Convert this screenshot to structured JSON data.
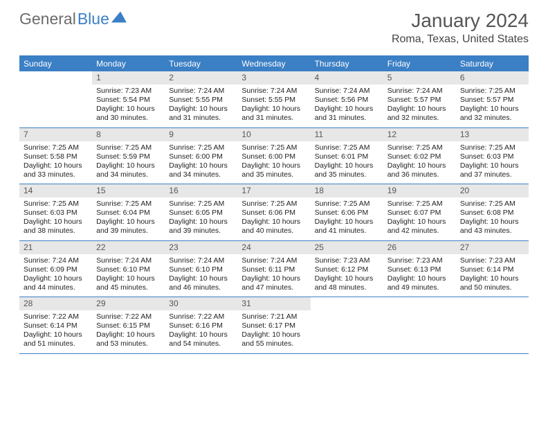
{
  "logo": {
    "text1": "General",
    "text2": "Blue"
  },
  "header": {
    "title": "January 2024",
    "location": "Roma, Texas, United States"
  },
  "colors": {
    "accent": "#3b7fc4",
    "daynum_bg": "#e7e7e7",
    "text": "#222222",
    "title": "#555555"
  },
  "weekdays": [
    "Sunday",
    "Monday",
    "Tuesday",
    "Wednesday",
    "Thursday",
    "Friday",
    "Saturday"
  ],
  "weeks": [
    [
      {
        "num": "",
        "sunrise": "",
        "sunset": "",
        "daylight1": "",
        "daylight2": ""
      },
      {
        "num": "1",
        "sunrise": "Sunrise: 7:23 AM",
        "sunset": "Sunset: 5:54 PM",
        "daylight1": "Daylight: 10 hours",
        "daylight2": "and 30 minutes."
      },
      {
        "num": "2",
        "sunrise": "Sunrise: 7:24 AM",
        "sunset": "Sunset: 5:55 PM",
        "daylight1": "Daylight: 10 hours",
        "daylight2": "and 31 minutes."
      },
      {
        "num": "3",
        "sunrise": "Sunrise: 7:24 AM",
        "sunset": "Sunset: 5:55 PM",
        "daylight1": "Daylight: 10 hours",
        "daylight2": "and 31 minutes."
      },
      {
        "num": "4",
        "sunrise": "Sunrise: 7:24 AM",
        "sunset": "Sunset: 5:56 PM",
        "daylight1": "Daylight: 10 hours",
        "daylight2": "and 31 minutes."
      },
      {
        "num": "5",
        "sunrise": "Sunrise: 7:24 AM",
        "sunset": "Sunset: 5:57 PM",
        "daylight1": "Daylight: 10 hours",
        "daylight2": "and 32 minutes."
      },
      {
        "num": "6",
        "sunrise": "Sunrise: 7:25 AM",
        "sunset": "Sunset: 5:57 PM",
        "daylight1": "Daylight: 10 hours",
        "daylight2": "and 32 minutes."
      }
    ],
    [
      {
        "num": "7",
        "sunrise": "Sunrise: 7:25 AM",
        "sunset": "Sunset: 5:58 PM",
        "daylight1": "Daylight: 10 hours",
        "daylight2": "and 33 minutes."
      },
      {
        "num": "8",
        "sunrise": "Sunrise: 7:25 AM",
        "sunset": "Sunset: 5:59 PM",
        "daylight1": "Daylight: 10 hours",
        "daylight2": "and 34 minutes."
      },
      {
        "num": "9",
        "sunrise": "Sunrise: 7:25 AM",
        "sunset": "Sunset: 6:00 PM",
        "daylight1": "Daylight: 10 hours",
        "daylight2": "and 34 minutes."
      },
      {
        "num": "10",
        "sunrise": "Sunrise: 7:25 AM",
        "sunset": "Sunset: 6:00 PM",
        "daylight1": "Daylight: 10 hours",
        "daylight2": "and 35 minutes."
      },
      {
        "num": "11",
        "sunrise": "Sunrise: 7:25 AM",
        "sunset": "Sunset: 6:01 PM",
        "daylight1": "Daylight: 10 hours",
        "daylight2": "and 35 minutes."
      },
      {
        "num": "12",
        "sunrise": "Sunrise: 7:25 AM",
        "sunset": "Sunset: 6:02 PM",
        "daylight1": "Daylight: 10 hours",
        "daylight2": "and 36 minutes."
      },
      {
        "num": "13",
        "sunrise": "Sunrise: 7:25 AM",
        "sunset": "Sunset: 6:03 PM",
        "daylight1": "Daylight: 10 hours",
        "daylight2": "and 37 minutes."
      }
    ],
    [
      {
        "num": "14",
        "sunrise": "Sunrise: 7:25 AM",
        "sunset": "Sunset: 6:03 PM",
        "daylight1": "Daylight: 10 hours",
        "daylight2": "and 38 minutes."
      },
      {
        "num": "15",
        "sunrise": "Sunrise: 7:25 AM",
        "sunset": "Sunset: 6:04 PM",
        "daylight1": "Daylight: 10 hours",
        "daylight2": "and 39 minutes."
      },
      {
        "num": "16",
        "sunrise": "Sunrise: 7:25 AM",
        "sunset": "Sunset: 6:05 PM",
        "daylight1": "Daylight: 10 hours",
        "daylight2": "and 39 minutes."
      },
      {
        "num": "17",
        "sunrise": "Sunrise: 7:25 AM",
        "sunset": "Sunset: 6:06 PM",
        "daylight1": "Daylight: 10 hours",
        "daylight2": "and 40 minutes."
      },
      {
        "num": "18",
        "sunrise": "Sunrise: 7:25 AM",
        "sunset": "Sunset: 6:06 PM",
        "daylight1": "Daylight: 10 hours",
        "daylight2": "and 41 minutes."
      },
      {
        "num": "19",
        "sunrise": "Sunrise: 7:25 AM",
        "sunset": "Sunset: 6:07 PM",
        "daylight1": "Daylight: 10 hours",
        "daylight2": "and 42 minutes."
      },
      {
        "num": "20",
        "sunrise": "Sunrise: 7:25 AM",
        "sunset": "Sunset: 6:08 PM",
        "daylight1": "Daylight: 10 hours",
        "daylight2": "and 43 minutes."
      }
    ],
    [
      {
        "num": "21",
        "sunrise": "Sunrise: 7:24 AM",
        "sunset": "Sunset: 6:09 PM",
        "daylight1": "Daylight: 10 hours",
        "daylight2": "and 44 minutes."
      },
      {
        "num": "22",
        "sunrise": "Sunrise: 7:24 AM",
        "sunset": "Sunset: 6:10 PM",
        "daylight1": "Daylight: 10 hours",
        "daylight2": "and 45 minutes."
      },
      {
        "num": "23",
        "sunrise": "Sunrise: 7:24 AM",
        "sunset": "Sunset: 6:10 PM",
        "daylight1": "Daylight: 10 hours",
        "daylight2": "and 46 minutes."
      },
      {
        "num": "24",
        "sunrise": "Sunrise: 7:24 AM",
        "sunset": "Sunset: 6:11 PM",
        "daylight1": "Daylight: 10 hours",
        "daylight2": "and 47 minutes."
      },
      {
        "num": "25",
        "sunrise": "Sunrise: 7:23 AM",
        "sunset": "Sunset: 6:12 PM",
        "daylight1": "Daylight: 10 hours",
        "daylight2": "and 48 minutes."
      },
      {
        "num": "26",
        "sunrise": "Sunrise: 7:23 AM",
        "sunset": "Sunset: 6:13 PM",
        "daylight1": "Daylight: 10 hours",
        "daylight2": "and 49 minutes."
      },
      {
        "num": "27",
        "sunrise": "Sunrise: 7:23 AM",
        "sunset": "Sunset: 6:14 PM",
        "daylight1": "Daylight: 10 hours",
        "daylight2": "and 50 minutes."
      }
    ],
    [
      {
        "num": "28",
        "sunrise": "Sunrise: 7:22 AM",
        "sunset": "Sunset: 6:14 PM",
        "daylight1": "Daylight: 10 hours",
        "daylight2": "and 51 minutes."
      },
      {
        "num": "29",
        "sunrise": "Sunrise: 7:22 AM",
        "sunset": "Sunset: 6:15 PM",
        "daylight1": "Daylight: 10 hours",
        "daylight2": "and 53 minutes."
      },
      {
        "num": "30",
        "sunrise": "Sunrise: 7:22 AM",
        "sunset": "Sunset: 6:16 PM",
        "daylight1": "Daylight: 10 hours",
        "daylight2": "and 54 minutes."
      },
      {
        "num": "31",
        "sunrise": "Sunrise: 7:21 AM",
        "sunset": "Sunset: 6:17 PM",
        "daylight1": "Daylight: 10 hours",
        "daylight2": "and 55 minutes."
      },
      {
        "num": "",
        "sunrise": "",
        "sunset": "",
        "daylight1": "",
        "daylight2": ""
      },
      {
        "num": "",
        "sunrise": "",
        "sunset": "",
        "daylight1": "",
        "daylight2": ""
      },
      {
        "num": "",
        "sunrise": "",
        "sunset": "",
        "daylight1": "",
        "daylight2": ""
      }
    ]
  ]
}
